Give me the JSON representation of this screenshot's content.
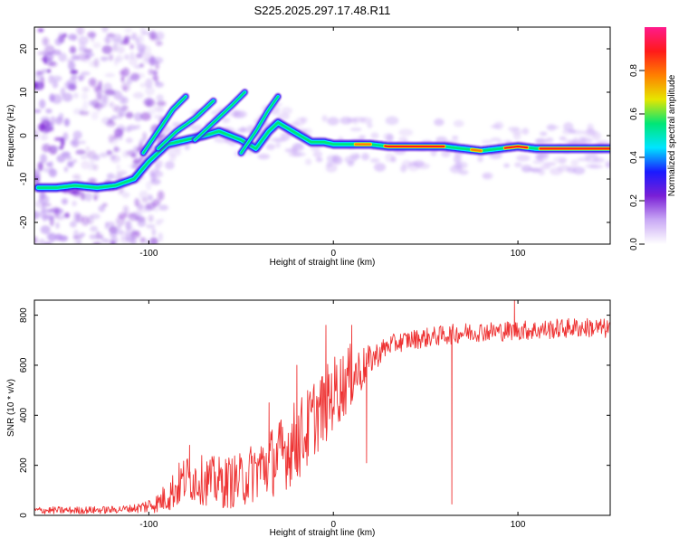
{
  "title": "S225.2025.297.17.48.R11",
  "chart_data": [
    {
      "type": "heatmap",
      "xlabel": "Height of straight line (km)",
      "ylabel": "Frequency (Hz)",
      "xlim": [
        -162,
        150
      ],
      "ylim": [
        -25,
        25
      ],
      "xticks": [
        -100,
        0,
        100
      ],
      "xtick_labels": [
        "-100",
        "0",
        "100"
      ],
      "yticks": [
        -20,
        -10,
        0,
        10,
        20
      ],
      "ytick_labels": [
        "-20",
        "-10",
        "0",
        "10",
        "20"
      ],
      "ridges": [
        {
          "name": "main-trace",
          "points": [
            [
              -160,
              -12
            ],
            [
              -150,
              -12
            ],
            [
              -140,
              -11.5
            ],
            [
              -128,
              -12
            ],
            [
              -118,
              -11.5
            ],
            [
              -108,
              -10
            ],
            [
              -100,
              -6
            ],
            [
              -90,
              -2
            ],
            [
              -80,
              -1
            ],
            [
              -70,
              0
            ],
            [
              -62,
              1
            ],
            [
              -50,
              -1
            ],
            [
              -42,
              -3
            ],
            [
              -35,
              1
            ],
            [
              -30,
              3
            ],
            [
              -22,
              1
            ],
            [
              -12,
              -1.5
            ],
            [
              -5,
              -1.5
            ],
            [
              0,
              -2
            ],
            [
              10,
              -2
            ],
            [
              20,
              -2
            ],
            [
              30,
              -2.5
            ],
            [
              40,
              -2.5
            ],
            [
              50,
              -2.5
            ],
            [
              60,
              -2.5
            ],
            [
              70,
              -3
            ],
            [
              80,
              -3.5
            ],
            [
              90,
              -3
            ],
            [
              100,
              -2.5
            ],
            [
              110,
              -3
            ],
            [
              120,
              -3
            ],
            [
              130,
              -3
            ],
            [
              140,
              -3
            ],
            [
              150,
              -3
            ]
          ]
        },
        {
          "name": "diagonal-streak-1",
          "points": [
            [
              -103,
              -4
            ],
            [
              -95,
              1
            ],
            [
              -87,
              6
            ],
            [
              -80,
              9
            ]
          ]
        },
        {
          "name": "diagonal-streak-2",
          "points": [
            [
              -95,
              -3
            ],
            [
              -85,
              1
            ],
            [
              -75,
              4
            ],
            [
              -65,
              8
            ]
          ]
        },
        {
          "name": "diagonal-streak-3",
          "points": [
            [
              -75,
              -1
            ],
            [
              -65,
              3
            ],
            [
              -55,
              7
            ],
            [
              -48,
              10
            ]
          ]
        },
        {
          "name": "diagonal-streak-4",
          "points": [
            [
              -50,
              -4
            ],
            [
              -42,
              1
            ],
            [
              -35,
              6
            ],
            [
              -30,
              9
            ]
          ]
        }
      ],
      "colorbar": {
        "label": "Normalized spectral amplitude",
        "ticks": [
          0.0,
          0.2,
          0.4,
          0.6,
          0.8
        ],
        "tick_labels": [
          "0.0",
          "0.2",
          "0.4",
          "0.6",
          "0.8"
        ],
        "colors": [
          "#ffffff",
          "#c9a9f5",
          "#7a1fd6",
          "#1a1aff",
          "#00e5ff",
          "#00e676",
          "#e6e600",
          "#ff8000",
          "#ff1a1a",
          "#ff1a8c"
        ]
      }
    },
    {
      "type": "line",
      "xlabel": "Height of straight line (km)",
      "ylabel": "SNR (10 * v/v)",
      "xlim": [
        -162,
        150
      ],
      "ylim": [
        0,
        860
      ],
      "xticks": [
        -100,
        0,
        100
      ],
      "xtick_labels": [
        "-100",
        "0",
        "100"
      ],
      "yticks": [
        0,
        200,
        400,
        600,
        800
      ],
      "ytick_labels": [
        "0",
        "200",
        "400",
        "600",
        "800"
      ],
      "series": [
        {
          "name": "SNR",
          "color": "#ee3333",
          "envelope": [
            [
              -162,
              20
            ],
            [
              -140,
              20
            ],
            [
              -120,
              22
            ],
            [
              -105,
              30
            ],
            [
              -95,
              50
            ],
            [
              -88,
              90
            ],
            [
              -80,
              150
            ],
            [
              -70,
              140
            ],
            [
              -60,
              130
            ],
            [
              -50,
              140
            ],
            [
              -40,
              190
            ],
            [
              -30,
              230
            ],
            [
              -20,
              300
            ],
            [
              -15,
              330
            ],
            [
              -10,
              400
            ],
            [
              -5,
              430
            ],
            [
              0,
              490
            ],
            [
              5,
              520
            ],
            [
              10,
              560
            ],
            [
              15,
              580
            ],
            [
              20,
              620
            ],
            [
              25,
              650
            ],
            [
              30,
              680
            ],
            [
              40,
              700
            ],
            [
              50,
              710
            ],
            [
              60,
              720
            ],
            [
              70,
              730
            ],
            [
              80,
              735
            ],
            [
              90,
              735
            ],
            [
              100,
              740
            ],
            [
              110,
              740
            ],
            [
              120,
              745
            ],
            [
              130,
              750
            ],
            [
              140,
              750
            ],
            [
              150,
              745
            ]
          ],
          "noise": [
            [
              -162,
              15
            ],
            [
              -110,
              15
            ],
            [
              -95,
              40
            ],
            [
              -85,
              90
            ],
            [
              -70,
              100
            ],
            [
              -50,
              110
            ],
            [
              -30,
              150
            ],
            [
              -20,
              170
            ],
            [
              -10,
              160
            ],
            [
              0,
              150
            ],
            [
              10,
              130
            ],
            [
              20,
              60
            ],
            [
              30,
              40
            ],
            [
              60,
              40
            ],
            [
              100,
              40
            ],
            [
              150,
              40
            ]
          ],
          "spikes": [
            [
              -78,
              280
            ],
            [
              -35,
              450
            ],
            [
              -20,
              600
            ],
            [
              -4,
              760
            ],
            [
              10,
              760
            ],
            [
              18,
              210
            ],
            [
              64,
              45
            ],
            [
              98,
              860
            ]
          ]
        }
      ]
    }
  ]
}
